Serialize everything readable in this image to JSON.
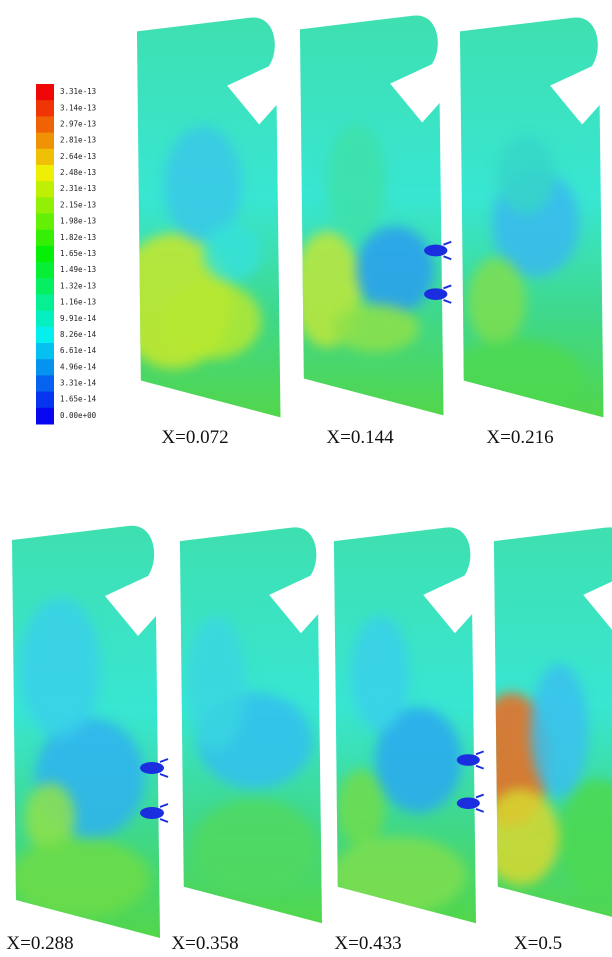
{
  "colorbar": {
    "labels": [
      "3.31e-13",
      "3.14e-13",
      "2.97e-13",
      "2.81e-13",
      "2.64e-13",
      "2.48e-13",
      "2.31e-13",
      "2.15e-13",
      "1.98e-13",
      "1.82e-13",
      "1.65e-13",
      "1.49e-13",
      "1.32e-13",
      "1.16e-13",
      "9.91e-14",
      "8.26e-14",
      "6.61e-14",
      "4.96e-14",
      "3.31e-14",
      "1.65e-14",
      "0.00e+00"
    ]
  },
  "panels": [
    {
      "label": "X=0.072"
    },
    {
      "label": "X=0.144"
    },
    {
      "label": "X=0.216"
    },
    {
      "label": "X=0.288"
    },
    {
      "label": "X=0.358"
    },
    {
      "label": "X=0.433"
    },
    {
      "label": "X=0.5"
    }
  ]
}
